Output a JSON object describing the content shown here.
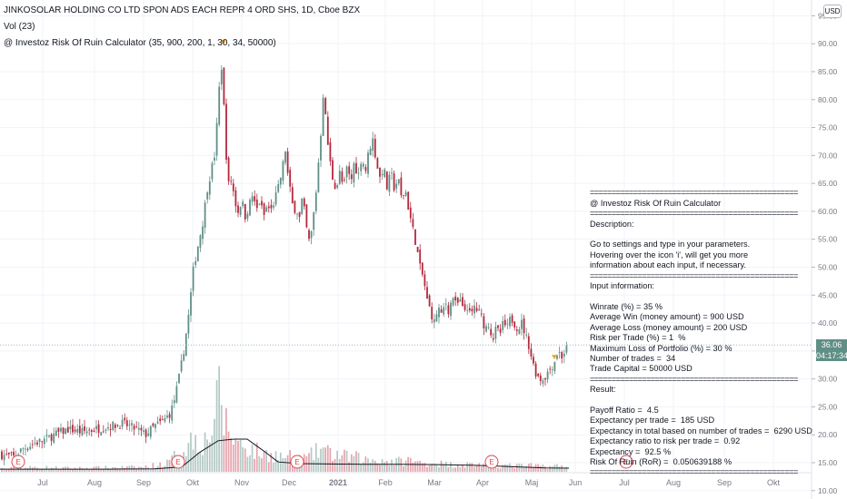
{
  "header": {
    "title": "JINKOSOLAR HOLDING CO LTD SPON ADS EACH REPR 4 ORD SHS, 1D, Cboe BZX",
    "vol_label": "Vol (23)",
    "indicator_label": "@ Investoz Risk Of Ruin Calculator (35, 900, 200, 1, 30, 34, 50000)"
  },
  "currency_button": "USD",
  "last_price": "36.06",
  "countdown": "04:17:34",
  "info_panel": {
    "separator": "================================================",
    "title": "@ Investoz Risk Of Ruin Calculator",
    "description_heading": "Description:",
    "description_lines": [
      "Go to settings and type in your parameters.",
      "Hovering over the icon 'i', will get you more",
      "information about each input, if necessary."
    ],
    "input_heading": "Input information:",
    "input_lines": [
      "Winrate (%) = 35 %",
      "Average Win (money amount) = 900 USD",
      "Average Loss (money amount) = 200 USD",
      "Risk per Trade (%) = 1  %",
      "Maximum Loss of Portfolio (%) = 30 %",
      "Number of trades =  34",
      "Trade Capital = 50000 USD"
    ],
    "result_heading": "Result:",
    "result_lines": [
      "Payoff Ratio =  4.5",
      "Expectancy per trade =  185 USD",
      "Expectancy in total based on number of trades =  6290 USD",
      "Expectancy ratio to risk per trade =  0.92",
      "Expectancy =  92.5 %",
      "Risk Of Ruin (RoR) =  0.050639188 %"
    ]
  },
  "colors": {
    "up": "#5f8f86",
    "down": "#b2283c",
    "vol_up": "#b3c9c4",
    "vol_down": "#e6a3ac",
    "ma_line": "#131722",
    "earnings": "#e0454f",
    "arrow": "#f5a623"
  },
  "chart_data": {
    "type": "candlestick",
    "y_axis": {
      "ticks": [
        "95.00",
        "90.00",
        "85.00",
        "80.00",
        "75.00",
        "70.00",
        "65.00",
        "60.00",
        "55.00",
        "50.00",
        "45.00",
        "40.00",
        "35.00",
        "30.00",
        "25.00",
        "20.00",
        "15.00",
        "10.00"
      ],
      "range": [
        8.5,
        97.5
      ]
    },
    "x_axis": {
      "ticks": [
        "Jul",
        "Aug",
        "Sep",
        "Okt",
        "Nov",
        "Dec",
        "2021",
        "Feb",
        "Mar",
        "Apr",
        "Maj",
        "Jun",
        "Jul",
        "Aug",
        "Sep",
        "Okt"
      ]
    },
    "last_price": 36.06,
    "price_path": [
      [
        0,
        16.5
      ],
      [
        15,
        16
      ],
      [
        25,
        17.5
      ],
      [
        38,
        18.5
      ],
      [
        48,
        19
      ],
      [
        60,
        20
      ],
      [
        75,
        21
      ],
      [
        90,
        20.5
      ],
      [
        105,
        21
      ],
      [
        120,
        21.5
      ],
      [
        135,
        22
      ],
      [
        150,
        21
      ],
      [
        160,
        20
      ],
      [
        170,
        21.5
      ],
      [
        180,
        22.5
      ],
      [
        188,
        24
      ],
      [
        193,
        27
      ],
      [
        198,
        31
      ],
      [
        203,
        36
      ],
      [
        208,
        42
      ],
      [
        213,
        50
      ],
      [
        218,
        54
      ],
      [
        223,
        58
      ],
      [
        228,
        64
      ],
      [
        232,
        67
      ],
      [
        236,
        70
      ],
      [
        240,
        78
      ],
      [
        243,
        88
      ],
      [
        246,
        80
      ],
      [
        249,
        70
      ],
      [
        252,
        64
      ],
      [
        255,
        66
      ],
      [
        258,
        62
      ],
      [
        262,
        60
      ],
      [
        266,
        62
      ],
      [
        270,
        59
      ],
      [
        274,
        61
      ],
      [
        278,
        63
      ],
      [
        282,
        60
      ],
      [
        286,
        62
      ],
      [
        290,
        59
      ],
      [
        294,
        61
      ],
      [
        298,
        60
      ],
      [
        302,
        62
      ],
      [
        306,
        64
      ],
      [
        310,
        67
      ],
      [
        314,
        71
      ],
      [
        317,
        66
      ],
      [
        320,
        63
      ],
      [
        323,
        60
      ],
      [
        326,
        61
      ],
      [
        329,
        58
      ],
      [
        332,
        62
      ],
      [
        335,
        60
      ],
      [
        338,
        56
      ],
      [
        341,
        54
      ],
      [
        344,
        58
      ],
      [
        347,
        62
      ],
      [
        350,
        68
      ],
      [
        353,
        74
      ],
      [
        356,
        82
      ],
      [
        359,
        75
      ],
      [
        362,
        70
      ],
      [
        366,
        66
      ],
      [
        370,
        64
      ],
      [
        374,
        67
      ],
      [
        378,
        64
      ],
      [
        382,
        68
      ],
      [
        386,
        65
      ],
      [
        390,
        69
      ],
      [
        394,
        66
      ],
      [
        398,
        70
      ],
      [
        402,
        67
      ],
      [
        406,
        71
      ],
      [
        410,
        73
      ],
      [
        414,
        69
      ],
      [
        418,
        66
      ],
      [
        422,
        68
      ],
      [
        426,
        64
      ],
      [
        430,
        67
      ],
      [
        434,
        64
      ],
      [
        438,
        66
      ],
      [
        442,
        62
      ],
      [
        446,
        64
      ],
      [
        450,
        60
      ],
      [
        454,
        57
      ],
      [
        458,
        54
      ],
      [
        462,
        50
      ],
      [
        466,
        48
      ],
      [
        470,
        44
      ],
      [
        474,
        42
      ],
      [
        478,
        40
      ],
      [
        482,
        43
      ],
      [
        486,
        41
      ],
      [
        490,
        44
      ],
      [
        494,
        42
      ],
      [
        498,
        45
      ],
      [
        502,
        43
      ],
      [
        506,
        44
      ],
      [
        510,
        42
      ],
      [
        514,
        43
      ],
      [
        518,
        41
      ],
      [
        522,
        43
      ],
      [
        526,
        42
      ],
      [
        530,
        41
      ],
      [
        534,
        39
      ],
      [
        538,
        40
      ],
      [
        542,
        37
      ],
      [
        546,
        39
      ],
      [
        550,
        38
      ],
      [
        554,
        40
      ],
      [
        558,
        39
      ],
      [
        562,
        41
      ],
      [
        566,
        40
      ],
      [
        570,
        39
      ],
      [
        574,
        40
      ],
      [
        578,
        38
      ],
      [
        582,
        36
      ],
      [
        586,
        33
      ],
      [
        590,
        31
      ],
      [
        594,
        30
      ],
      [
        598,
        30
      ],
      [
        602,
        31
      ],
      [
        606,
        32
      ],
      [
        610,
        33
      ],
      [
        614,
        35
      ],
      [
        618,
        34
      ],
      [
        622,
        35
      ],
      [
        626,
        36.06
      ]
    ],
    "volume_path": [
      [
        0,
        1
      ],
      [
        40,
        1.5
      ],
      [
        80,
        1.2
      ],
      [
        120,
        1.4
      ],
      [
        160,
        1.6
      ],
      [
        185,
        3
      ],
      [
        195,
        6
      ],
      [
        205,
        9
      ],
      [
        215,
        12
      ],
      [
        225,
        10
      ],
      [
        232,
        14
      ],
      [
        238,
        20
      ],
      [
        242,
        28
      ],
      [
        246,
        18
      ],
      [
        252,
        14
      ],
      [
        260,
        10
      ],
      [
        270,
        9
      ],
      [
        280,
        7
      ],
      [
        290,
        6
      ],
      [
        300,
        6
      ],
      [
        310,
        5
      ],
      [
        320,
        5
      ],
      [
        330,
        4
      ],
      [
        340,
        5
      ],
      [
        350,
        7
      ],
      [
        356,
        8
      ],
      [
        362,
        6
      ],
      [
        370,
        6
      ],
      [
        380,
        5
      ],
      [
        390,
        5
      ],
      [
        400,
        4
      ],
      [
        410,
        4
      ],
      [
        420,
        4
      ],
      [
        430,
        3.5
      ],
      [
        440,
        3.5
      ],
      [
        450,
        4
      ],
      [
        460,
        3
      ],
      [
        470,
        3
      ],
      [
        480,
        3
      ],
      [
        490,
        2.5
      ],
      [
        500,
        2.5
      ],
      [
        520,
        2.5
      ],
      [
        540,
        2.5
      ],
      [
        560,
        2
      ],
      [
        580,
        2
      ],
      [
        600,
        2
      ],
      [
        626,
        1.8
      ]
    ],
    "ma_path": [
      [
        0,
        0.8
      ],
      [
        60,
        0.8
      ],
      [
        120,
        0.8
      ],
      [
        170,
        0.9
      ],
      [
        200,
        1.5
      ],
      [
        220,
        6
      ],
      [
        240,
        9.5
      ],
      [
        258,
        10
      ],
      [
        272,
        10
      ],
      [
        282,
        8
      ],
      [
        292,
        6
      ],
      [
        306,
        3
      ],
      [
        330,
        2.5
      ],
      [
        360,
        2.4
      ],
      [
        400,
        2.3
      ],
      [
        440,
        2.3
      ],
      [
        480,
        2.2
      ],
      [
        520,
        2
      ],
      [
        560,
        1.6
      ],
      [
        600,
        1.2
      ],
      [
        626,
        1.1
      ]
    ],
    "earnings_markers": [
      20,
      196,
      327,
      541,
      689
    ],
    "earnings_label": "E",
    "arrows": [
      {
        "x": 246,
        "direction": "down"
      },
      {
        "x": 610,
        "direction": "down"
      }
    ]
  }
}
